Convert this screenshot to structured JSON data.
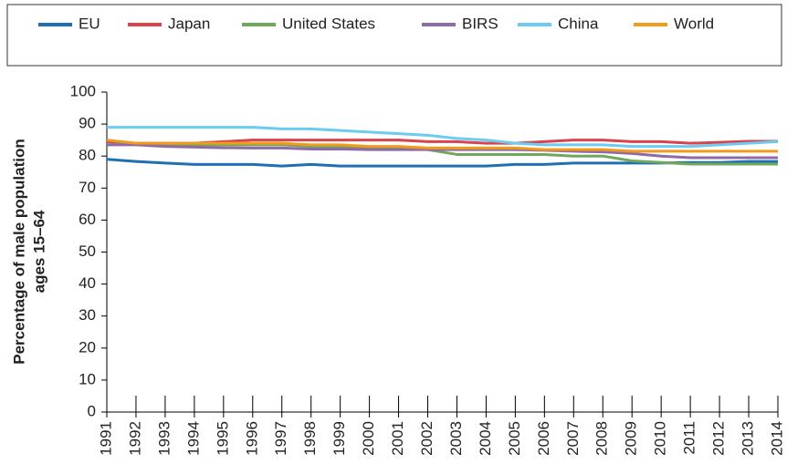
{
  "chart_data": {
    "type": "line",
    "ylabel": [
      "Percentage of male population",
      "ages 15–64"
    ],
    "categories": [
      "1991",
      "1992",
      "1993",
      "1994",
      "1995",
      "1996",
      "1997",
      "1998",
      "1999",
      "2000",
      "2001",
      "2002",
      "2003",
      "2004",
      "2005",
      "2006",
      "2007",
      "2008",
      "2009",
      "2010",
      "2011",
      "2012",
      "2013",
      "2014"
    ],
    "series": [
      {
        "name": "EU",
        "color": "#1f6fb5",
        "values": [
          79,
          78.3,
          77.8,
          77.4,
          77.4,
          77.4,
          76.9,
          77.4,
          76.9,
          76.9,
          76.9,
          76.9,
          76.9,
          76.9,
          77.4,
          77.4,
          77.8,
          77.8,
          77.8,
          77.8,
          78,
          78,
          78.3,
          78.3
        ]
      },
      {
        "name": "Japan",
        "color": "#d9434b",
        "values": [
          84.5,
          84,
          84,
          84,
          84.5,
          85,
          85,
          85,
          85,
          85,
          85,
          84.5,
          84.5,
          84,
          84,
          84.5,
          85,
          85,
          84.5,
          84.5,
          84,
          84.3,
          84.6,
          84.6
        ]
      },
      {
        "name": "United States",
        "color": "#6fa85a",
        "values": [
          83.5,
          84,
          83.5,
          83.5,
          83.5,
          83.5,
          83.5,
          83,
          83,
          82.5,
          82.5,
          82,
          80.5,
          80.5,
          80.5,
          80.5,
          80,
          80,
          78.5,
          78,
          77.5,
          77.5,
          77.5,
          77.5
        ]
      },
      {
        "name": "BIRS",
        "color": "#8e6ba8",
        "values": [
          83.5,
          83.5,
          83,
          82.8,
          82.6,
          82.5,
          82.5,
          82.2,
          82.2,
          82,
          82,
          82,
          82,
          82,
          82,
          81.8,
          81.5,
          81.3,
          80.8,
          80,
          79.5,
          79.5,
          79.5,
          79.5
        ]
      },
      {
        "name": "China",
        "color": "#6ccbf0",
        "values": [
          89,
          89,
          89,
          89,
          89,
          89,
          88.5,
          88.5,
          88,
          87.5,
          87,
          86.5,
          85.5,
          85,
          84,
          83.5,
          83.5,
          83.5,
          83,
          83,
          83,
          83.5,
          84,
          84.5
        ]
      },
      {
        "name": "World",
        "color": "#f39a1b",
        "values": [
          85,
          84,
          84,
          84,
          84,
          84,
          84,
          83.5,
          83.5,
          83,
          83,
          82.5,
          82.5,
          82.5,
          82.5,
          82,
          82,
          82,
          81.5,
          81.5,
          81.5,
          81.5,
          81.5,
          81.5
        ]
      }
    ],
    "ylim": [
      0,
      100
    ],
    "yticks": [
      0,
      10,
      20,
      30,
      40,
      50,
      60,
      70,
      80,
      90,
      100
    ],
    "grid": false,
    "legend": "top"
  }
}
